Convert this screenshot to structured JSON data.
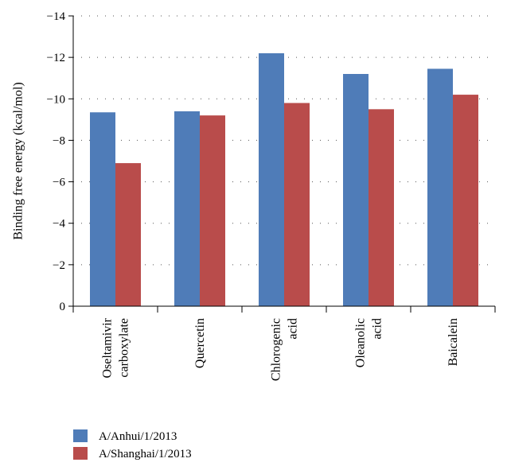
{
  "chart_data": {
    "type": "bar",
    "title": "",
    "xlabel": "",
    "ylabel": "Binding free energy (kcal/mol)",
    "ylim": [
      0,
      -14
    ],
    "y_ticks": [
      "0",
      "−2",
      "−4",
      "−6",
      "−8",
      "−10",
      "−12",
      "−14"
    ],
    "y_tick_values": [
      0,
      -2,
      -4,
      -6,
      -8,
      -10,
      -12,
      -14
    ],
    "grid": "dotted horizontal",
    "categories": [
      [
        "Oseltamivir",
        "carboxylate"
      ],
      [
        "Quercetin"
      ],
      [
        "Chlorogenic",
        "acid"
      ],
      [
        "Oleanolic",
        "acid"
      ],
      [
        "Baicalein"
      ]
    ],
    "series": [
      {
        "name": "A/Anhui/1/2013",
        "color": "#4f7cb8",
        "values": [
          -9.35,
          -9.4,
          -12.2,
          -11.2,
          -11.45
        ]
      },
      {
        "name": "A/Shanghai/1/2013",
        "color": "#b94c4b",
        "values": [
          -6.9,
          -9.2,
          -9.8,
          -9.5,
          -10.2
        ]
      }
    ],
    "legend_position": "bottom-left"
  }
}
